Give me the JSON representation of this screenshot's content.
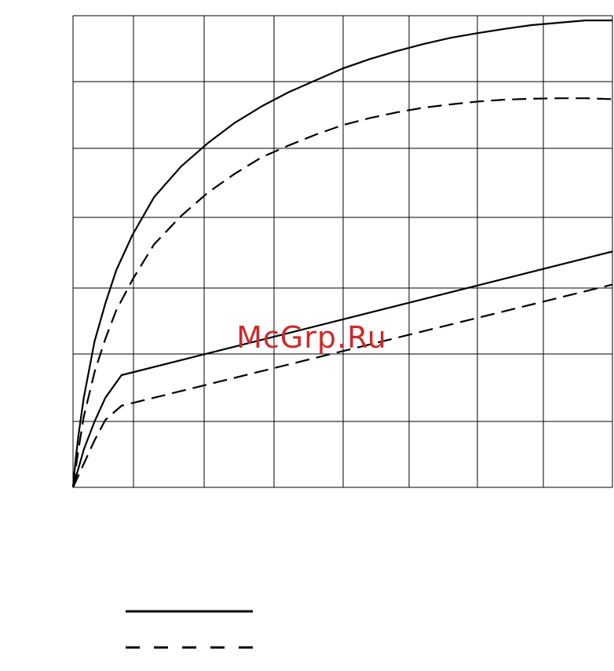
{
  "watermark": {
    "text": "McGrp.Ru",
    "color": "#cc2b2b"
  },
  "colors": {
    "ink": "#000000",
    "grid": "#000000",
    "background": "#ffffff"
  },
  "chart_data": {
    "type": "line",
    "title": "",
    "xlabel": "",
    "ylabel": "",
    "xlim": [
      0,
      100
    ],
    "ylim": [
      0,
      100
    ],
    "grid": true,
    "axis_tick_labels_visible": false,
    "legend": {
      "placement": "bottom-left",
      "entries": [
        {
          "style": "solid",
          "label": ""
        },
        {
          "style": "dashed",
          "label": ""
        }
      ]
    },
    "series": [
      {
        "style": "solid",
        "x": [
          0,
          0.5,
          1,
          2,
          4,
          6,
          8,
          11,
          15,
          20,
          25,
          30,
          35,
          40,
          45,
          50,
          55,
          60,
          65,
          70,
          75,
          80,
          85,
          90,
          95,
          100
        ],
        "y": [
          0,
          6,
          11,
          19,
          31,
          39,
          46,
          53.5,
          61.5,
          68,
          73,
          77.3,
          80.8,
          83.8,
          86.3,
          88.8,
          90.8,
          92.5,
          94,
          95.3,
          96.3,
          97.2,
          98,
          98.5,
          99,
          99
        ]
      },
      {
        "style": "dashed",
        "x": [
          0,
          1,
          2,
          4,
          6,
          8,
          11,
          15,
          20,
          25,
          30,
          35,
          40,
          45,
          50,
          55,
          60,
          65,
          70,
          75,
          80,
          85,
          90,
          95,
          100
        ],
        "y": [
          0,
          8,
          15,
          24.5,
          31.5,
          37.5,
          44,
          51.5,
          57.5,
          62.5,
          66.5,
          70,
          72.5,
          74.8,
          76.8,
          78.3,
          79.5,
          80.5,
          81.2,
          81.8,
          82.2,
          82.4,
          82.5,
          82.5,
          82.3
        ]
      },
      {
        "style": "solid",
        "x": [
          0,
          2,
          4,
          6,
          9,
          100
        ],
        "y": [
          0,
          8,
          14,
          19,
          23.8,
          50
        ]
      },
      {
        "style": "dashed",
        "x": [
          0,
          2,
          4,
          6,
          9,
          100
        ],
        "y": [
          0,
          5,
          10,
          14.3,
          17.3,
          43
        ]
      }
    ]
  }
}
